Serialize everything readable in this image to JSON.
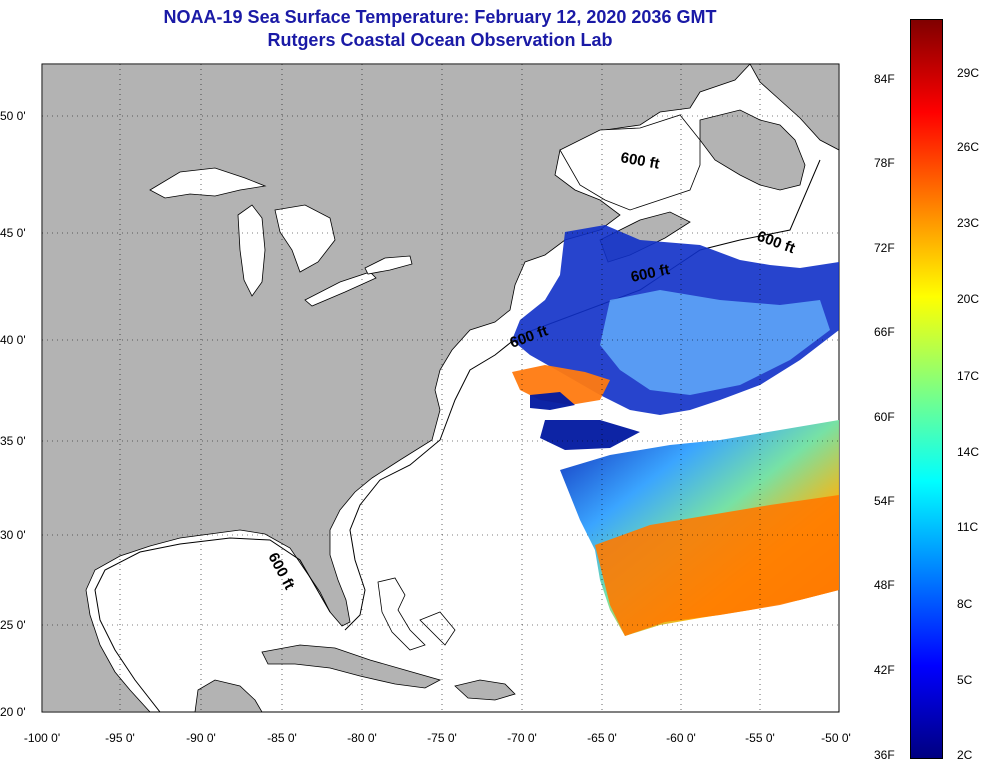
{
  "header": {
    "title_line1": "NOAA-19 Sea Surface Temperature:  February 12, 2020 2036 GMT",
    "title_line2": "Rutgers Coastal Ocean Observation Lab"
  },
  "axes": {
    "longitude_ticks": [
      "-100 0'",
      "-95 0'",
      "-90 0'",
      "-85 0'",
      "-80 0'",
      "-75 0'",
      "-70 0'",
      "-65 0'",
      "-60 0'",
      "-55 0'",
      "-50 0'"
    ],
    "latitude_ticks": [
      "50 0'",
      "45 0'",
      "40 0'",
      "35 0'",
      "30 0'",
      "25 0'",
      "20 0'"
    ]
  },
  "contours": {
    "depth_label": "600 ft"
  },
  "colorbar": {
    "fahrenheit": [
      "84F",
      "78F",
      "72F",
      "66F",
      "60F",
      "54F",
      "48F",
      "42F",
      "36F"
    ],
    "celsius": [
      "29C",
      "26C",
      "23C",
      "20C",
      "17C",
      "14C",
      "11C",
      "8C",
      "5C",
      "2C"
    ]
  },
  "colors": {
    "land": "#b3b3b3",
    "title": "#1a1aa6",
    "scale": [
      "#000080",
      "#0000ff",
      "#0080ff",
      "#00ffff",
      "#80ff80",
      "#ffff00",
      "#ff8000",
      "#ff0000",
      "#800000"
    ]
  }
}
